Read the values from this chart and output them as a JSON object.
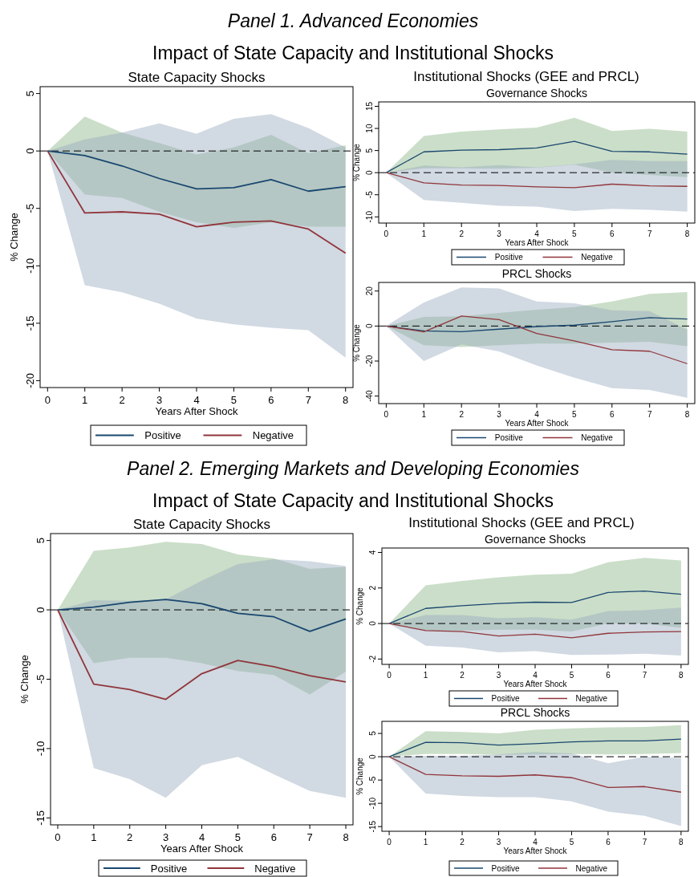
{
  "chart_data": [
    {
      "type": "line",
      "title": "State Capacity Shocks",
      "annotations": [
        "Panel 1. Advanced Economies",
        "Impact of State Capacity and Institutional Shocks"
      ],
      "xlabel": "Years After Shock",
      "ylabel": "% Change",
      "xlim": [
        -0.2,
        8.2
      ],
      "xticks": [
        0,
        1,
        2,
        3,
        4,
        5,
        6,
        7,
        8
      ],
      "ylim": [
        -20.6,
        5.6
      ],
      "yticks": [
        -20,
        -15,
        -10,
        -5,
        0,
        5
      ],
      "legend": "bottom",
      "ref_lines": [
        {
          "axis": "y",
          "value": 0,
          "line_style": "dashed"
        }
      ],
      "x": [
        0,
        1,
        2,
        3,
        4,
        5,
        6,
        7,
        8
      ],
      "series": [
        {
          "name": "Positive",
          "color": "#1a476f",
          "values": [
            0,
            -0.4,
            -1.3,
            -2.4,
            -3.3,
            -3.2,
            -2.5,
            -3.5,
            -3.1
          ],
          "lower": [
            0,
            -3.8,
            -4.1,
            -5.3,
            -6.2,
            -6.7,
            -6.2,
            -6.6,
            -6.6
          ],
          "upper": [
            0,
            3.0,
            1.6,
            0.7,
            -0.3,
            0.3,
            1.4,
            -0.2,
            0.5
          ]
        },
        {
          "name": "Negative",
          "color": "#90353b",
          "values": [
            0,
            -5.4,
            -5.3,
            -5.5,
            -6.6,
            -6.2,
            -6.1,
            -6.8,
            -8.9
          ],
          "lower": [
            0,
            -11.7,
            -12.3,
            -13.3,
            -14.6,
            -15.1,
            -15.4,
            -15.6,
            -18.0
          ],
          "upper": [
            0,
            1.0,
            1.6,
            2.4,
            1.5,
            2.8,
            3.2,
            2.0,
            0.3
          ]
        }
      ]
    },
    {
      "type": "line",
      "title": "Governance Shocks",
      "annotations": [
        "Institutional Shocks (GEE and PRCL)"
      ],
      "xlabel": "Years After Shock",
      "ylabel": "% Change",
      "xlim": [
        -0.2,
        8.2
      ],
      "xticks": [
        0,
        1,
        2,
        3,
        4,
        5,
        6,
        7,
        8
      ],
      "ylim": [
        -11.4,
        16
      ],
      "yticks": [
        -10,
        -5,
        0,
        5,
        10,
        15
      ],
      "legend": "bottom",
      "ref_lines": [
        {
          "axis": "y",
          "value": 0,
          "line_style": "dashed"
        }
      ],
      "x": [
        0,
        1,
        2,
        3,
        4,
        5,
        6,
        7,
        8
      ],
      "series": [
        {
          "name": "Positive",
          "color": "#1a476f",
          "values": [
            0,
            4.7,
            5.1,
            5.2,
            5.6,
            7.1,
            4.8,
            4.7,
            4.2
          ],
          "lower": [
            0,
            1.0,
            1.0,
            0.9,
            1.1,
            1.8,
            0.0,
            -0.5,
            -1.0
          ],
          "upper": [
            0,
            8.3,
            9.3,
            9.8,
            10.2,
            12.4,
            9.4,
            9.9,
            9.3
          ]
        },
        {
          "name": "Negative",
          "color": "#90353b",
          "values": [
            0,
            -2.3,
            -2.8,
            -2.9,
            -3.2,
            -3.4,
            -2.6,
            -3.0,
            -3.1
          ],
          "lower": [
            0,
            -6.2,
            -6.8,
            -7.5,
            -7.7,
            -8.7,
            -8.2,
            -8.4,
            -8.8
          ],
          "upper": [
            0,
            1.6,
            1.2,
            1.7,
            1.2,
            1.9,
            2.9,
            2.6,
            2.6
          ]
        }
      ]
    },
    {
      "type": "line",
      "title": "PRCL Shocks",
      "xlabel": "Years After Shock",
      "ylabel": "% Change",
      "xlim": [
        -0.2,
        8.2
      ],
      "xticks": [
        0,
        1,
        2,
        3,
        4,
        5,
        6,
        7,
        8
      ],
      "ylim": [
        -44.3,
        24.9
      ],
      "yticks": [
        -40,
        -20,
        0,
        20
      ],
      "legend": "bottom",
      "ref_lines": [
        {
          "axis": "y",
          "value": 0,
          "line_style": "dashed"
        }
      ],
      "x": [
        0,
        1,
        2,
        3,
        4,
        5,
        6,
        7,
        8
      ],
      "series": [
        {
          "name": "Positive",
          "color": "#1a476f",
          "values": [
            0,
            -2.8,
            -3.2,
            -1.8,
            -0.3,
            0.5,
            2.5,
            4.8,
            4.0
          ],
          "lower": [
            0,
            -11,
            -12,
            -11,
            -10,
            -10,
            -9.5,
            -9,
            -11.5
          ],
          "upper": [
            0,
            5.2,
            5.5,
            7.5,
            9.3,
            10.8,
            14.0,
            18.4,
            19.4
          ]
        },
        {
          "name": "Negative",
          "color": "#90353b",
          "values": [
            0,
            -3.3,
            5.7,
            3.6,
            -4.3,
            -8.5,
            -13.5,
            -14.4,
            -21.5
          ],
          "lower": [
            0,
            -20,
            -10.5,
            -14.5,
            -22.5,
            -29.5,
            -35.5,
            -36.5,
            -41
          ],
          "upper": [
            0,
            13.5,
            22,
            21.5,
            14,
            13,
            9,
            8.5,
            -2
          ]
        }
      ]
    },
    {
      "type": "line",
      "title": "State Capacity Shocks",
      "annotations": [
        "Panel 2. Emerging Markets and Developing Economies",
        "Impact of State Capacity and Institutional Shocks"
      ],
      "xlabel": "Years After Shock",
      "ylabel": "% Change",
      "xlim": [
        -0.2,
        8.2
      ],
      "xticks": [
        0,
        1,
        2,
        3,
        4,
        5,
        6,
        7,
        8
      ],
      "ylim": [
        -15.5,
        5.5
      ],
      "yticks": [
        -15,
        -10,
        -5,
        0,
        5
      ],
      "legend": "bottom",
      "ref_lines": [
        {
          "axis": "y",
          "value": 0,
          "line_style": "dashed"
        }
      ],
      "x": [
        0,
        1,
        2,
        3,
        4,
        5,
        6,
        7,
        8
      ],
      "series": [
        {
          "name": "Positive",
          "color": "#1a476f",
          "values": [
            0,
            0.2,
            0.55,
            0.75,
            0.45,
            -0.25,
            -0.5,
            -1.55,
            -0.65
          ],
          "lower": [
            0,
            -3.85,
            -3.45,
            -3.45,
            -3.85,
            -4.4,
            -4.7,
            -6.1,
            -4.45
          ],
          "upper": [
            0,
            4.25,
            4.5,
            4.9,
            4.75,
            4.0,
            3.7,
            2.95,
            3.1
          ]
        },
        {
          "name": "Negative",
          "color": "#90353b",
          "values": [
            0,
            -5.35,
            -5.75,
            -6.45,
            -4.6,
            -3.65,
            -4.1,
            -4.75,
            -5.2
          ],
          "lower": [
            0,
            -11.4,
            -12.2,
            -13.55,
            -11.2,
            -10.6,
            -11.85,
            -13.05,
            -13.55
          ],
          "upper": [
            0,
            0.7,
            0.65,
            0.75,
            2.1,
            3.3,
            3.65,
            3.5,
            3.15
          ]
        }
      ]
    },
    {
      "type": "line",
      "title": "Governance Shocks",
      "annotations": [
        "Institutional Shocks (GEE and PRCL)"
      ],
      "xlabel": "Years After Shock",
      "ylabel": "% Change",
      "xlim": [
        -0.2,
        8.2
      ],
      "xticks": [
        0,
        1,
        2,
        3,
        4,
        5,
        6,
        7,
        8
      ],
      "ylim": [
        -2.3,
        4.25
      ],
      "yticks": [
        -2,
        0,
        2,
        4
      ],
      "legend": "bottom",
      "ref_lines": [
        {
          "axis": "y",
          "value": 0,
          "line_style": "dashed"
        }
      ],
      "x": [
        0,
        1,
        2,
        3,
        4,
        5,
        6,
        7,
        8
      ],
      "series": [
        {
          "name": "Positive",
          "color": "#1a476f",
          "values": [
            0,
            0.85,
            1.0,
            1.13,
            1.2,
            1.18,
            1.75,
            1.83,
            1.65
          ],
          "lower": [
            0,
            -0.4,
            -0.4,
            -0.35,
            -0.35,
            -0.45,
            0.0,
            0.0,
            -0.25
          ],
          "upper": [
            0,
            2.15,
            2.4,
            2.6,
            2.75,
            2.8,
            3.45,
            3.7,
            3.55
          ]
        },
        {
          "name": "Negative",
          "color": "#90353b",
          "values": [
            0,
            -0.4,
            -0.45,
            -0.7,
            -0.6,
            -0.8,
            -0.55,
            -0.48,
            -0.45
          ],
          "lower": [
            0,
            -1.25,
            -1.35,
            -1.62,
            -1.55,
            -1.77,
            -1.75,
            -1.7,
            -1.8
          ],
          "upper": [
            0,
            0.48,
            0.48,
            0.3,
            0.35,
            0.22,
            0.7,
            0.75,
            0.9
          ]
        }
      ]
    },
    {
      "type": "line",
      "title": "PRCL Shocks",
      "xlabel": "Years After Shock",
      "ylabel": "% Change",
      "xlim": [
        -0.2,
        8.2
      ],
      "xticks": [
        0,
        1,
        2,
        3,
        4,
        5,
        6,
        7,
        8
      ],
      "ylim": [
        -16,
        7.6
      ],
      "yticks": [
        -15,
        -10,
        -5,
        0,
        5
      ],
      "legend": "bottom",
      "ref_lines": [
        {
          "axis": "y",
          "value": 0,
          "line_style": "dashed"
        }
      ],
      "x": [
        0,
        1,
        2,
        3,
        4,
        5,
        6,
        7,
        8
      ],
      "series": [
        {
          "name": "Positive",
          "color": "#1a476f",
          "values": [
            0,
            3.1,
            3.0,
            2.5,
            2.8,
            3.2,
            3.4,
            3.4,
            3.8
          ],
          "lower": [
            0,
            0.6,
            0.6,
            0.4,
            0.5,
            0.6,
            0.5,
            0.6,
            0.8
          ],
          "upper": [
            0,
            5.5,
            5.3,
            5.0,
            5.8,
            6.1,
            6.3,
            6.4,
            6.8
          ]
        },
        {
          "name": "Negative",
          "color": "#90353b",
          "values": [
            0,
            -3.8,
            -4.1,
            -4.2,
            -3.9,
            -4.5,
            -6.6,
            -6.4,
            -7.6
          ],
          "lower": [
            0,
            -7.9,
            -8.4,
            -8.7,
            -8.7,
            -9.6,
            -11.8,
            -12.7,
            -14.9
          ],
          "upper": [
            0,
            0.2,
            0.2,
            0.5,
            1.0,
            0.7,
            -1.4,
            0.0,
            -0.3
          ]
        }
      ]
    }
  ]
}
